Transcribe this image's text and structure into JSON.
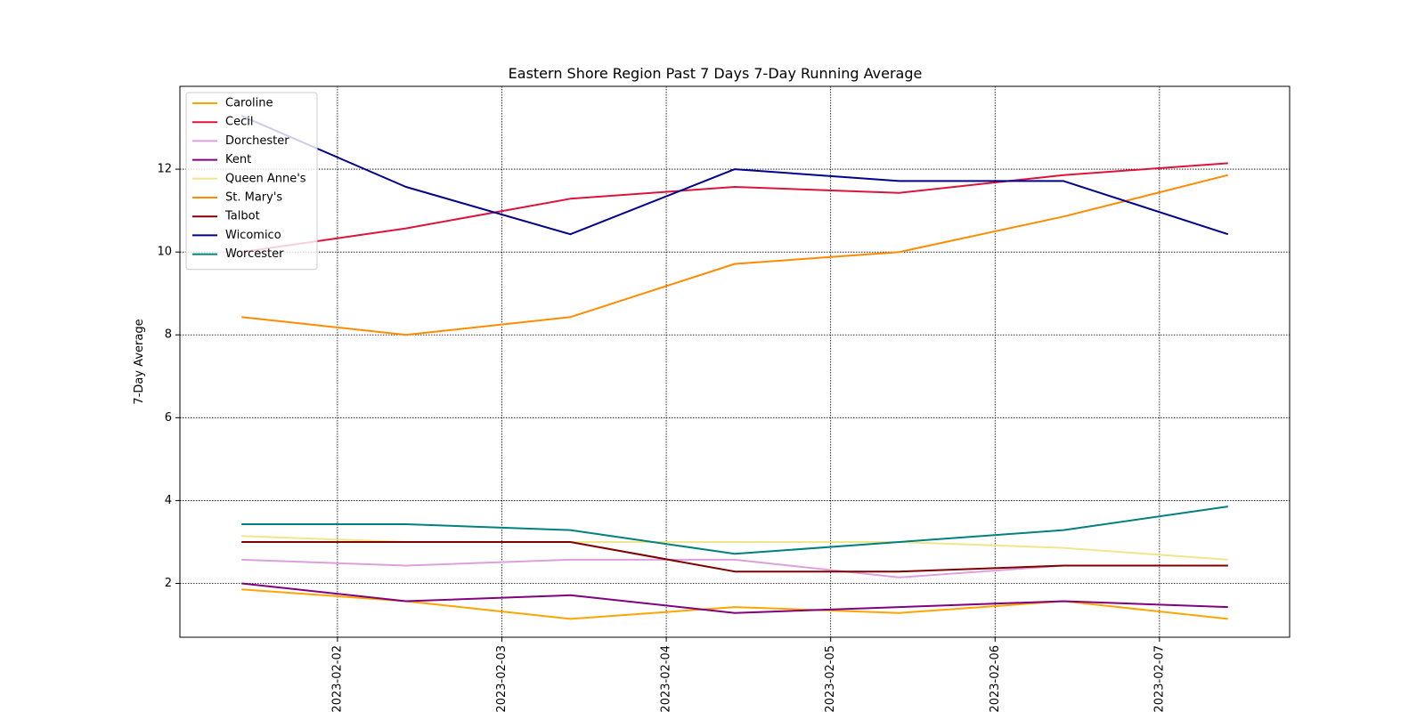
{
  "chart_data": {
    "type": "line",
    "title": "Eastern Shore Region Past 7 Days 7-Day Running Average",
    "xlabel": "",
    "ylabel": "7-Day Average",
    "x": [
      "2023-02-01 10:00",
      "2023-02-02 10:00",
      "2023-02-03 10:00",
      "2023-02-04 10:00",
      "2023-02-05 10:00",
      "2023-02-06 10:00",
      "2023-02-07 10:00"
    ],
    "x_ticks": [
      "2023-02-02",
      "2023-02-03",
      "2023-02-04",
      "2023-02-05",
      "2023-02-06",
      "2023-02-07"
    ],
    "xlim": [
      "2023-02-01 01:00",
      "2023-02-07 19:00"
    ],
    "ylim": [
      0.7,
      14.0
    ],
    "y_ticks": [
      2,
      4,
      6,
      8,
      10,
      12
    ],
    "grid": true,
    "legend_position": "upper-left",
    "series": [
      {
        "name": "Caroline",
        "color": "#ffa500",
        "values": [
          1.857,
          1.571,
          1.143,
          1.429,
          1.286,
          1.571,
          1.143
        ]
      },
      {
        "name": "Cecil",
        "color": "#dc143c",
        "values": [
          10.0,
          10.571,
          11.286,
          11.571,
          11.429,
          11.857,
          12.143
        ]
      },
      {
        "name": "Dorchester",
        "color": "#dda0dd",
        "values": [
          2.571,
          2.429,
          2.571,
          2.571,
          2.143,
          2.429,
          2.429
        ]
      },
      {
        "name": "Kent",
        "color": "#800080",
        "values": [
          2.0,
          1.571,
          1.714,
          1.286,
          1.429,
          1.571,
          1.429
        ]
      },
      {
        "name": "Queen Anne's",
        "color": "#f0e68c",
        "values": [
          3.143,
          3.0,
          3.0,
          3.0,
          3.0,
          2.857,
          2.571
        ]
      },
      {
        "name": "St. Mary's",
        "color": "#ff8c00",
        "values": [
          8.429,
          8.0,
          8.429,
          9.714,
          10.0,
          10.857,
          11.857
        ]
      },
      {
        "name": "Talbot",
        "color": "#800000",
        "values": [
          3.0,
          3.0,
          3.0,
          2.286,
          2.286,
          2.429,
          2.429
        ]
      },
      {
        "name": "Wicomico",
        "color": "#00008b",
        "values": [
          13.286,
          11.571,
          10.429,
          12.0,
          11.714,
          11.714,
          10.429
        ]
      },
      {
        "name": "Worcester",
        "color": "#008080",
        "values": [
          3.429,
          3.429,
          3.286,
          2.714,
          3.0,
          3.286,
          3.857
        ]
      }
    ]
  }
}
